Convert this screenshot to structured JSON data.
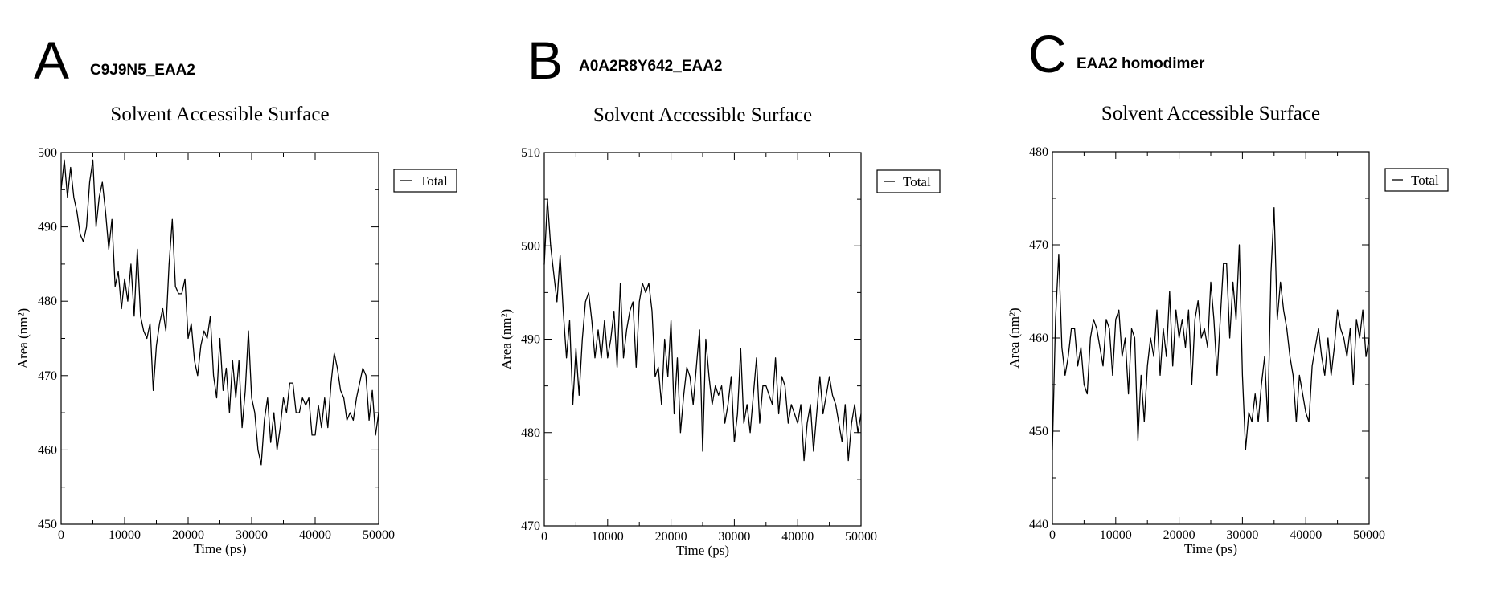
{
  "chart_data": [
    {
      "type": "line",
      "panel_label": "A",
      "panel_name": "C9J9N5_EAA2",
      "title": "Solvent Accessible Surface",
      "xlabel": "Time (ps)",
      "ylabel": "Area (nm²)",
      "xlim": [
        0,
        50000
      ],
      "ylim": [
        450,
        500
      ],
      "xticks": [
        "0",
        "10000",
        "20000",
        "30000",
        "40000",
        "50000"
      ],
      "yticks": [
        "450",
        "460",
        "470",
        "480",
        "490",
        "500"
      ],
      "grid": false,
      "legend_position": "outside-right",
      "series": [
        {
          "name": "Total",
          "color": "#000000",
          "x": [
            0,
            500,
            1000,
            1500,
            2000,
            2500,
            3000,
            3500,
            4000,
            4500,
            5000,
            5500,
            6000,
            6500,
            7000,
            7500,
            8000,
            8500,
            9000,
            9500,
            10000,
            10500,
            11000,
            11500,
            12000,
            12500,
            13000,
            13500,
            14000,
            14500,
            15000,
            15500,
            16000,
            16500,
            17000,
            17500,
            18000,
            18500,
            19000,
            19500,
            20000,
            20500,
            21000,
            21500,
            22000,
            22500,
            23000,
            23500,
            24000,
            24500,
            25000,
            25500,
            26000,
            26500,
            27000,
            27500,
            28000,
            28500,
            29000,
            29500,
            30000,
            30500,
            31000,
            31500,
            32000,
            32500,
            33000,
            33500,
            34000,
            34500,
            35000,
            35500,
            36000,
            36500,
            37000,
            37500,
            38000,
            38500,
            39000,
            39500,
            40000,
            40500,
            41000,
            41500,
            42000,
            42500,
            43000,
            43500,
            44000,
            44500,
            45000,
            45500,
            46000,
            46500,
            47000,
            47500,
            48000,
            48500,
            49000,
            49500,
            50000
          ],
          "y": [
            495,
            499,
            494,
            498,
            494,
            492,
            489,
            488,
            490,
            496,
            499,
            490,
            494,
            496,
            492,
            487,
            491,
            482,
            484,
            479,
            483,
            480,
            485,
            478,
            487,
            478,
            476,
            475,
            477,
            468,
            474,
            477,
            479,
            476,
            485,
            491,
            482,
            481,
            481,
            483,
            475,
            477,
            472,
            470,
            474,
            476,
            475,
            478,
            470,
            467,
            475,
            468,
            471,
            465,
            472,
            467,
            472,
            463,
            468,
            476,
            467,
            465,
            460,
            458,
            464,
            467,
            461,
            465,
            460,
            463,
            467,
            465,
            469,
            469,
            465,
            465,
            467,
            466,
            467,
            462,
            462,
            466,
            463,
            467,
            463,
            469,
            473,
            471,
            468,
            467,
            464,
            465,
            464,
            467,
            469,
            471,
            470,
            464,
            468,
            462,
            465
          ]
        }
      ]
    },
    {
      "type": "line",
      "panel_label": "B",
      "panel_name": "A0A2R8Y642_EAA2",
      "title": "Solvent Accessible Surface",
      "xlabel": "Time (ps)",
      "ylabel": "Area (nm²)",
      "xlim": [
        0,
        50000
      ],
      "ylim": [
        470,
        510
      ],
      "xticks": [
        "0",
        "10000",
        "20000",
        "30000",
        "40000",
        "50000"
      ],
      "yticks": [
        "470",
        "480",
        "490",
        "500",
        "510"
      ],
      "grid": false,
      "legend_position": "outside-right",
      "series": [
        {
          "name": "Total",
          "color": "#000000",
          "x": [
            0,
            500,
            1000,
            1500,
            2000,
            2500,
            3000,
            3500,
            4000,
            4500,
            5000,
            5500,
            6000,
            6500,
            7000,
            7500,
            8000,
            8500,
            9000,
            9500,
            10000,
            10500,
            11000,
            11500,
            12000,
            12500,
            13000,
            13500,
            14000,
            14500,
            15000,
            15500,
            16000,
            16500,
            17000,
            17500,
            18000,
            18500,
            19000,
            19500,
            20000,
            20500,
            21000,
            21500,
            22000,
            22500,
            23000,
            23500,
            24000,
            24500,
            25000,
            25500,
            26000,
            26500,
            27000,
            27500,
            28000,
            28500,
            29000,
            29500,
            30000,
            30500,
            31000,
            31500,
            32000,
            32500,
            33000,
            33500,
            34000,
            34500,
            35000,
            35500,
            36000,
            36500,
            37000,
            37500,
            38000,
            38500,
            39000,
            39500,
            40000,
            40500,
            41000,
            41500,
            42000,
            42500,
            43000,
            43500,
            44000,
            44500,
            45000,
            45500,
            46000,
            46500,
            47000,
            47500,
            48000,
            48500,
            49000,
            49500,
            50000
          ],
          "y": [
            498,
            505,
            500,
            497,
            494,
            499,
            493,
            488,
            492,
            483,
            489,
            484,
            490,
            494,
            495,
            492,
            488,
            491,
            488,
            492,
            488,
            490,
            493,
            487,
            496,
            488,
            491,
            493,
            494,
            487,
            494,
            496,
            495,
            496,
            493,
            486,
            487,
            483,
            490,
            486,
            492,
            482,
            488,
            480,
            484,
            487,
            486,
            483,
            487,
            491,
            478,
            490,
            486,
            483,
            485,
            484,
            485,
            481,
            483,
            486,
            479,
            482,
            489,
            481,
            483,
            480,
            484,
            488,
            481,
            485,
            485,
            484,
            483,
            488,
            482,
            486,
            485,
            481,
            483,
            482,
            481,
            483,
            477,
            481,
            483,
            478,
            482,
            486,
            482,
            484,
            486,
            484,
            483,
            481,
            479,
            483,
            477,
            481,
            483,
            480,
            482
          ]
        }
      ]
    },
    {
      "type": "line",
      "panel_label": "C",
      "panel_name": "EAA2 homodimer",
      "title": "Solvent Accessible Surface",
      "xlabel": "Time (ps)",
      "ylabel": "Area (nm²)",
      "xlim": [
        0,
        50000
      ],
      "ylim": [
        440,
        480
      ],
      "xticks": [
        "0",
        "10000",
        "20000",
        "30000",
        "40000",
        "50000"
      ],
      "yticks": [
        "440",
        "450",
        "460",
        "470",
        "480"
      ],
      "grid": false,
      "legend_position": "outside-right",
      "series": [
        {
          "name": "Total",
          "color": "#000000",
          "x": [
            0,
            500,
            1000,
            1500,
            2000,
            2500,
            3000,
            3500,
            4000,
            4500,
            5000,
            5500,
            6000,
            6500,
            7000,
            7500,
            8000,
            8500,
            9000,
            9500,
            10000,
            10500,
            11000,
            11500,
            12000,
            12500,
            13000,
            13500,
            14000,
            14500,
            15000,
            15500,
            16000,
            16500,
            17000,
            17500,
            18000,
            18500,
            19000,
            19500,
            20000,
            20500,
            21000,
            21500,
            22000,
            22500,
            23000,
            23500,
            24000,
            24500,
            25000,
            25500,
            26000,
            26500,
            27000,
            27500,
            28000,
            28500,
            29000,
            29500,
            30000,
            30500,
            31000,
            31500,
            32000,
            32500,
            33000,
            33500,
            34000,
            34500,
            35000,
            35500,
            36000,
            36500,
            37000,
            37500,
            38000,
            38500,
            39000,
            39500,
            40000,
            40500,
            41000,
            41500,
            42000,
            42500,
            43000,
            43500,
            44000,
            44500,
            45000,
            45500,
            46000,
            46500,
            47000,
            47500,
            48000,
            48500,
            49000,
            49500,
            50000
          ],
          "y": [
            448,
            462,
            469,
            459,
            456,
            458,
            461,
            461,
            457,
            459,
            455,
            454,
            460,
            462,
            461,
            459,
            457,
            462,
            461,
            456,
            462,
            463,
            458,
            460,
            454,
            461,
            460,
            449,
            456,
            451,
            457,
            460,
            458,
            463,
            456,
            461,
            458,
            465,
            457,
            463,
            460,
            462,
            459,
            463,
            455,
            462,
            464,
            460,
            461,
            459,
            466,
            462,
            456,
            462,
            468,
            468,
            460,
            466,
            462,
            470,
            456,
            448,
            452,
            451,
            454,
            451,
            455,
            458,
            451,
            467,
            474,
            462,
            466,
            463,
            461,
            458,
            456,
            451,
            456,
            454,
            452,
            451,
            457,
            459,
            461,
            458,
            456,
            460,
            456,
            459,
            463,
            461,
            460,
            458,
            461,
            455,
            462,
            460,
            463,
            458,
            460
          ]
        }
      ]
    }
  ]
}
